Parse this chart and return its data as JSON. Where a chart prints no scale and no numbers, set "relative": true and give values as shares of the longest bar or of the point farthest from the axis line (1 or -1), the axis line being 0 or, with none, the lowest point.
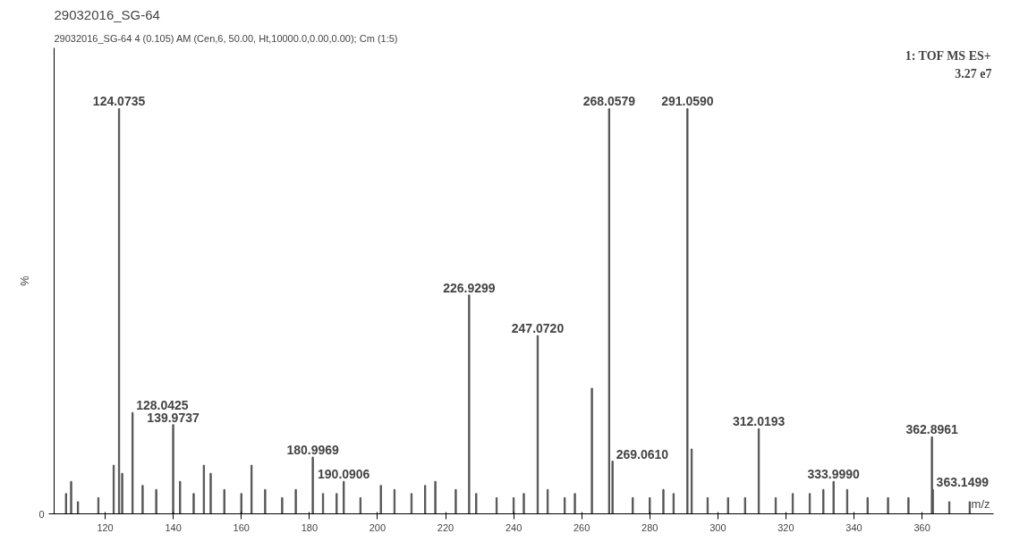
{
  "chart_data": {
    "type": "bar",
    "title": "29032016_SG-64",
    "subtitle": "29032016_SG-64 4 (0.105) AM (Cen,6, 50.00, Ht,10000.0,0.00,0.00); Cm (1:5)",
    "xlabel": "m/z",
    "ylabel": "%",
    "relative": true,
    "grid": false,
    "xlim": [
      105,
      381
    ],
    "xticks": [
      120,
      140,
      160,
      180,
      200,
      220,
      240,
      260,
      280,
      300,
      320,
      340,
      360
    ],
    "annotations": [
      "1: TOF MS ES+",
      "3.27 e7",
      "0",
      {
        "text": "124.0735",
        "x": 124.0735,
        "y": 1
      },
      {
        "text": "128.0425",
        "x": 128.0425,
        "y": 0.25
      },
      {
        "text": "139.9737",
        "x": 139.9737,
        "y": 0.22
      },
      {
        "text": "180.9969",
        "x": 180.9969,
        "y": 0.14
      },
      {
        "text": "190.0906",
        "x": 190.0906,
        "y": 0.08
      },
      {
        "text": "226.9299",
        "x": 226.9299,
        "y": 0.54
      },
      {
        "text": "247.0720",
        "x": 247.072,
        "y": 0.44
      },
      {
        "text": "268.0579",
        "x": 268.0579,
        "y": 1
      },
      {
        "text": "269.0610",
        "x": 269.061,
        "y": 0.13
      },
      {
        "text": "291.0590",
        "x": 291.059,
        "y": 1
      },
      {
        "text": "312.0193",
        "x": 312.0193,
        "y": 0.21
      },
      {
        "text": "333.9990",
        "x": 333.999,
        "y": 0.08
      },
      {
        "text": "362.8961",
        "x": 362.8961,
        "y": 0.19
      },
      {
        "text": "363.1499",
        "x": 363.1499,
        "y": 0.06
      }
    ],
    "x": [
      108.5,
      110,
      112,
      118,
      122.5,
      124.0735,
      125,
      128.0425,
      131,
      135,
      139.9737,
      142,
      146,
      149,
      151,
      155,
      160,
      163,
      167,
      172,
      176,
      180.9969,
      184,
      188,
      190.0906,
      195,
      201,
      205,
      210,
      214,
      217,
      223,
      226.9299,
      229,
      235,
      240,
      243,
      247.072,
      250,
      255,
      258,
      263,
      268.0579,
      269.061,
      275,
      280,
      284,
      287,
      291.059,
      292.3,
      297,
      303,
      308,
      312.0193,
      317,
      322,
      327,
      331,
      333.999,
      338,
      344,
      350,
      356,
      362.8961,
      363.1499,
      368,
      374
    ],
    "values": [
      0.05,
      0.08,
      0.03,
      0.04,
      0.12,
      1,
      0.1,
      0.25,
      0.07,
      0.06,
      0.22,
      0.08,
      0.05,
      0.12,
      0.1,
      0.06,
      0.05,
      0.12,
      0.06,
      0.04,
      0.06,
      0.14,
      0.05,
      0.05,
      0.08,
      0.04,
      0.07,
      0.06,
      0.05,
      0.07,
      0.08,
      0.06,
      0.54,
      0.05,
      0.04,
      0.04,
      0.05,
      0.44,
      0.06,
      0.04,
      0.05,
      0.31,
      1,
      0.13,
      0.04,
      0.04,
      0.06,
      0.05,
      1,
      0.16,
      0.04,
      0.04,
      0.04,
      0.21,
      0.04,
      0.05,
      0.05,
      0.06,
      0.08,
      0.06,
      0.04,
      0.04,
      0.04,
      0.19,
      0.06,
      0.03,
      0.03
    ],
    "color": "#555555"
  }
}
